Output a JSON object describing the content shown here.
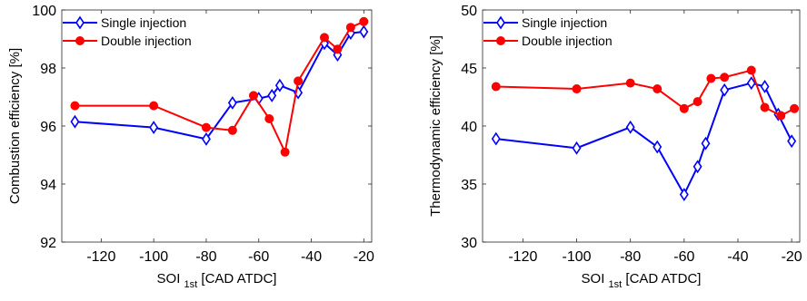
{
  "chart_data": [
    {
      "type": "line",
      "ylabel": "Combustion efficiency [%]",
      "xlabel": {
        "main": "SOI",
        "sub": "1st",
        "rest": " [CAD ATDC]"
      },
      "xlim": [
        -135,
        -17
      ],
      "ylim": [
        92,
        100
      ],
      "xticks": [
        -120,
        -100,
        -80,
        -60,
        -40,
        -20
      ],
      "yticks": [
        92,
        94,
        96,
        98,
        100
      ],
      "grid": false,
      "legend_placement": "top-left",
      "series": [
        {
          "name": "Single injection",
          "color": "#0000ff",
          "marker": "diamond",
          "x": [
            -130,
            -100,
            -80,
            -70,
            -60,
            -55,
            -52,
            -45,
            -35,
            -30,
            -25,
            -20
          ],
          "y": [
            96.15,
            95.95,
            95.55,
            96.8,
            96.95,
            97.05,
            97.4,
            97.15,
            98.85,
            98.45,
            99.2,
            99.25
          ]
        },
        {
          "name": "Double injection",
          "color": "#ff0000",
          "marker": "circle",
          "x": [
            -130,
            -100,
            -80,
            -70,
            -62,
            -56,
            -50,
            -45,
            -35,
            -30,
            -25,
            -20
          ],
          "y": [
            96.7,
            96.7,
            95.95,
            95.85,
            97.05,
            96.25,
            95.1,
            97.55,
            99.05,
            98.65,
            99.4,
            99.6
          ]
        }
      ]
    },
    {
      "type": "line",
      "ylabel": "Thermodynamic efficiency [%]",
      "xlabel": {
        "main": "SOI",
        "sub": "1st",
        "rest": " [CAD ATDC]"
      },
      "xlim": [
        -135,
        -17
      ],
      "ylim": [
        30,
        50
      ],
      "xticks": [
        -120,
        -100,
        -80,
        -60,
        -40,
        -20
      ],
      "yticks": [
        30,
        35,
        40,
        45,
        50
      ],
      "grid": false,
      "legend_placement": "top-left",
      "series": [
        {
          "name": "Single injection",
          "color": "#0000ff",
          "marker": "diamond",
          "x": [
            -130,
            -100,
            -80,
            -70,
            -60,
            -55,
            -52,
            -45,
            -35,
            -30,
            -25,
            -20
          ],
          "y": [
            38.9,
            38.1,
            39.9,
            38.2,
            34.1,
            36.5,
            38.5,
            43.1,
            43.7,
            43.4,
            41.0,
            38.7
          ]
        },
        {
          "name": "Double injection",
          "color": "#ff0000",
          "marker": "circle",
          "x": [
            -130,
            -100,
            -80,
            -70,
            -60,
            -55,
            -50,
            -45,
            -35,
            -30,
            -24,
            -19
          ],
          "y": [
            43.4,
            43.2,
            43.7,
            43.2,
            41.5,
            42.1,
            44.1,
            44.2,
            44.8,
            41.6,
            40.9,
            41.5
          ]
        }
      ]
    }
  ]
}
